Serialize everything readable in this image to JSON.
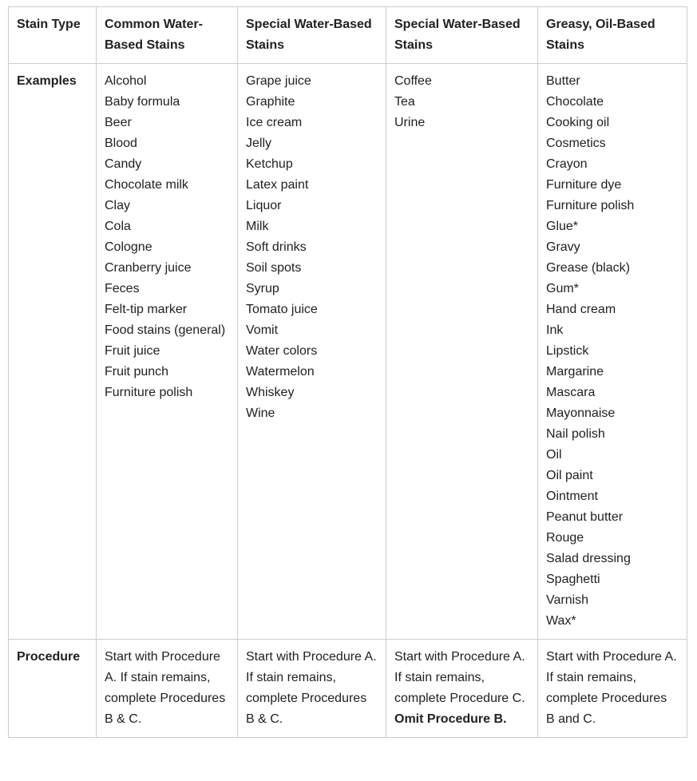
{
  "theme": {
    "text_color": "#212121",
    "border_color": "#cccccc",
    "background": "#ffffff"
  },
  "table": {
    "columns": [
      {
        "header": "Stain Type"
      },
      {
        "header": "Common Water-Based Stains"
      },
      {
        "header": "Special Water-Based Stains"
      },
      {
        "header": "Special Water-Based Stains"
      },
      {
        "header": "Greasy, Oil-Based Stains"
      }
    ],
    "examples": {
      "label": "Examples",
      "common_water_based": [
        "Alcohol",
        "Baby formula",
        "Beer",
        "Blood",
        "Candy",
        "Chocolate milk",
        "Clay",
        "Cola",
        "Cologne",
        "Cranberry juice",
        "Feces",
        "Felt-tip marker",
        "Food stains (general) Fruit juice",
        "Fruit punch",
        "Furniture polish"
      ],
      "special_water_based_1": [
        "Grape juice",
        "Graphite",
        "Ice cream",
        "Jelly",
        "Ketchup",
        "Latex paint",
        "Liquor",
        "Milk",
        "Soft drinks",
        "Soil spots",
        "Syrup",
        "Tomato juice",
        "Vomit",
        "Water colors",
        "Watermelon",
        "Whiskey",
        "Wine"
      ],
      "special_water_based_2": [
        "Coffee",
        "Tea",
        "Urine"
      ],
      "greasy_oil_based": [
        "Butter",
        "Chocolate",
        "Cooking oil",
        "Cosmetics",
        "Crayon",
        "Furniture dye",
        "Furniture polish",
        "Glue*",
        "Gravy",
        "Grease (black)",
        "Gum*",
        "Hand cream",
        "Ink",
        "Lipstick",
        "Margarine",
        "Mascara",
        "Mayonnaise",
        "Nail polish",
        "Oil",
        "Oil paint",
        "Ointment",
        "Peanut butter",
        "Rouge",
        "Salad dressing",
        "Spaghetti",
        "Varnish",
        "Wax*"
      ]
    },
    "procedure": {
      "label": "Procedure",
      "common_water_based": {
        "text": "Start with Procedure A. If stain remains, complete Procedures B & C.",
        "bold": ""
      },
      "special_water_based_1": {
        "text": "Start with Procedure A. If stain remains, complete Procedures B & C.",
        "bold": ""
      },
      "special_water_based_2": {
        "text": "Start with Procedure A. If stain remains, complete Procedure C. ",
        "bold": "Omit Procedure B."
      },
      "greasy_oil_based": {
        "text": "Start with Procedure A. If stain remains, complete Procedures B and C.",
        "bold": ""
      }
    }
  }
}
